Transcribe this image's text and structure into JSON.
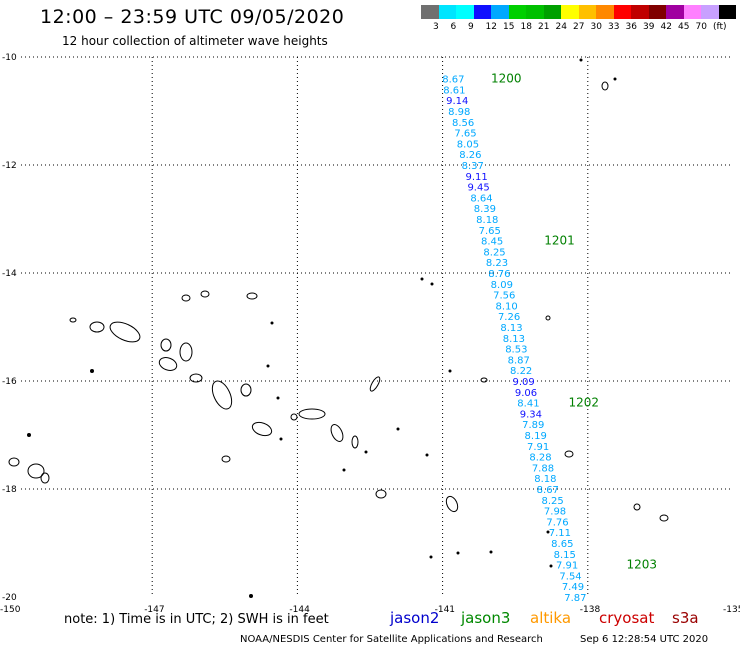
{
  "header": {
    "title": "12:00 – 23:59 UTC 09/05/2020",
    "subtitle": "12 hour collection of altimeter wave heights"
  },
  "legend": {
    "colors": [
      "#707070",
      "#00e5ff",
      "#00ffff",
      "#1010ff",
      "#00a8ff",
      "#00d000",
      "#00c000",
      "#00a000",
      "#ffff00",
      "#ffc000",
      "#ff8800",
      "#ff0000",
      "#c00000",
      "#800000",
      "#a000a0",
      "#ff80ff",
      "#c8a0ff",
      "#000000"
    ],
    "labels": [
      "3",
      "6",
      "9",
      "12",
      "15",
      "18",
      "21",
      "24",
      "27",
      "30",
      "33",
      "36",
      "39",
      "42",
      "45",
      "70",
      "(ft)"
    ]
  },
  "axes": {
    "x_ticks": [
      "-150",
      "-147",
      "-144",
      "-141",
      "-138",
      "-135"
    ],
    "y_ticks": [
      "-10",
      "-12",
      "-14",
      "-16",
      "-18",
      "-20"
    ]
  },
  "chart_data": {
    "type": "scatter",
    "x_label": "",
    "y_label": "",
    "xlim": [
      -150,
      -135
    ],
    "ylim": [
      -20,
      -10
    ],
    "grid": true,
    "wave_heights": [
      {
        "lon": -140.8,
        "lat": -10.4,
        "value": "8.67",
        "color": "#00a8ff"
      },
      {
        "lon": -140.78,
        "lat": -10.6,
        "value": "8.61",
        "color": "#00a8ff"
      },
      {
        "lon": -140.72,
        "lat": -10.8,
        "value": "9.14",
        "color": "#1010ff"
      },
      {
        "lon": -140.68,
        "lat": -11.0,
        "value": "8.98",
        "color": "#00a8ff"
      },
      {
        "lon": -140.6,
        "lat": -11.2,
        "value": "8.56",
        "color": "#00a8ff"
      },
      {
        "lon": -140.55,
        "lat": -11.4,
        "value": "7.65",
        "color": "#00a8ff"
      },
      {
        "lon": -140.5,
        "lat": -11.6,
        "value": "8.05",
        "color": "#00a8ff"
      },
      {
        "lon": -140.45,
        "lat": -11.8,
        "value": "8.26",
        "color": "#00a8ff"
      },
      {
        "lon": -140.4,
        "lat": -12.0,
        "value": "8.37",
        "color": "#00a8ff"
      },
      {
        "lon": -140.32,
        "lat": -12.2,
        "value": "9.11",
        "color": "#1010ff"
      },
      {
        "lon": -140.28,
        "lat": -12.4,
        "value": "9.45",
        "color": "#1010ff"
      },
      {
        "lon": -140.22,
        "lat": -12.6,
        "value": "8.64",
        "color": "#00a8ff"
      },
      {
        "lon": -140.15,
        "lat": -12.8,
        "value": "8.39",
        "color": "#00a8ff"
      },
      {
        "lon": -140.1,
        "lat": -13.0,
        "value": "8.18",
        "color": "#00a8ff"
      },
      {
        "lon": -140.05,
        "lat": -13.2,
        "value": "7.65",
        "color": "#00a8ff"
      },
      {
        "lon": -140.0,
        "lat": -13.4,
        "value": "8.45",
        "color": "#00a8ff"
      },
      {
        "lon": -139.95,
        "lat": -13.6,
        "value": "8.25",
        "color": "#00a8ff"
      },
      {
        "lon": -139.9,
        "lat": -13.8,
        "value": "8.23",
        "color": "#00a8ff"
      },
      {
        "lon": -139.85,
        "lat": -14.0,
        "value": "8.76",
        "color": "#00a8ff"
      },
      {
        "lon": -139.8,
        "lat": -14.2,
        "value": "8.09",
        "color": "#00a8ff"
      },
      {
        "lon": -139.75,
        "lat": -14.4,
        "value": "7.56",
        "color": "#00a8ff"
      },
      {
        "lon": -139.7,
        "lat": -14.6,
        "value": "8.10",
        "color": "#00a8ff"
      },
      {
        "lon": -139.65,
        "lat": -14.8,
        "value": "7.26",
        "color": "#00a8ff"
      },
      {
        "lon": -139.6,
        "lat": -15.0,
        "value": "8.13",
        "color": "#00a8ff"
      },
      {
        "lon": -139.55,
        "lat": -15.2,
        "value": "8.13",
        "color": "#00a8ff"
      },
      {
        "lon": -139.5,
        "lat": -15.4,
        "value": "8.53",
        "color": "#00a8ff"
      },
      {
        "lon": -139.45,
        "lat": -15.6,
        "value": "8.87",
        "color": "#00a8ff"
      },
      {
        "lon": -139.4,
        "lat": -15.8,
        "value": "8.22",
        "color": "#00a8ff"
      },
      {
        "lon": -139.35,
        "lat": -16.0,
        "value": "9.09",
        "color": "#1010ff"
      },
      {
        "lon": -139.3,
        "lat": -16.2,
        "value": "9.06",
        "color": "#1010ff"
      },
      {
        "lon": -139.25,
        "lat": -16.4,
        "value": "8.41",
        "color": "#00a8ff"
      },
      {
        "lon": -139.2,
        "lat": -16.6,
        "value": "9.34",
        "color": "#1010ff"
      },
      {
        "lon": -139.15,
        "lat": -16.8,
        "value": "7.89",
        "color": "#00a8ff"
      },
      {
        "lon": -139.1,
        "lat": -17.0,
        "value": "8.19",
        "color": "#00a8ff"
      },
      {
        "lon": -139.05,
        "lat": -17.2,
        "value": "7.91",
        "color": "#00a8ff"
      },
      {
        "lon": -139.0,
        "lat": -17.4,
        "value": "8.28",
        "color": "#00a8ff"
      },
      {
        "lon": -138.95,
        "lat": -17.6,
        "value": "7.88",
        "color": "#00a8ff"
      },
      {
        "lon": -138.9,
        "lat": -17.8,
        "value": "8.18",
        "color": "#00a8ff"
      },
      {
        "lon": -138.85,
        "lat": -18.0,
        "value": "8.67",
        "color": "#00a8ff"
      },
      {
        "lon": -138.75,
        "lat": -18.2,
        "value": "8.25",
        "color": "#00a8ff"
      },
      {
        "lon": -138.7,
        "lat": -18.4,
        "value": "7.98",
        "color": "#00a8ff"
      },
      {
        "lon": -138.65,
        "lat": -18.6,
        "value": "7.76",
        "color": "#00a8ff"
      },
      {
        "lon": -138.6,
        "lat": -18.8,
        "value": "7.11",
        "color": "#00a8ff"
      },
      {
        "lon": -138.55,
        "lat": -19.0,
        "value": "8.65",
        "color": "#00a8ff"
      },
      {
        "lon": -138.5,
        "lat": -19.2,
        "value": "8.15",
        "color": "#00a8ff"
      },
      {
        "lon": -138.45,
        "lat": -19.4,
        "value": "7.91",
        "color": "#00a8ff"
      },
      {
        "lon": -138.38,
        "lat": -19.6,
        "value": "7.54",
        "color": "#00a8ff"
      },
      {
        "lon": -138.33,
        "lat": -19.8,
        "value": "7.49",
        "color": "#00a8ff"
      },
      {
        "lon": -138.28,
        "lat": -20.0,
        "value": "7.87",
        "color": "#00a8ff"
      }
    ],
    "time_labels": [
      {
        "lon": -140.0,
        "lat": -10.4,
        "value": "1200",
        "color": "#008000"
      },
      {
        "lon": -138.9,
        "lat": -13.4,
        "value": "1201",
        "color": "#008000"
      },
      {
        "lon": -138.4,
        "lat": -16.4,
        "value": "1202",
        "color": "#008000"
      },
      {
        "lon": -137.2,
        "lat": -19.4,
        "value": "1203",
        "color": "#008000"
      }
    ]
  },
  "footer": {
    "note": "note: 1) Time is in UTC; 2) SWH is in feet",
    "satellites": [
      {
        "name": "jason2",
        "color": "#0000cc"
      },
      {
        "name": "jason3",
        "color": "#008800"
      },
      {
        "name": "altika",
        "color": "#ff9900"
      },
      {
        "name": "cryosat",
        "color": "#cc0000"
      },
      {
        "name": "s3a",
        "color": "#990000"
      }
    ],
    "credit": "NOAA/NESDIS Center for Satellite Applications and Research",
    "timestamp": "Sep  6 12:28:54 UTC 2020"
  }
}
